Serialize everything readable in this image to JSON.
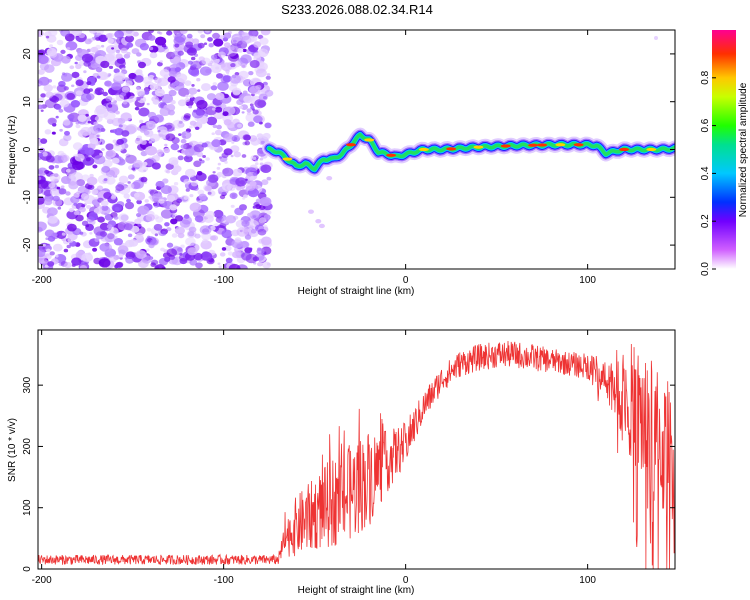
{
  "figure": {
    "title": "S233.2026.088.02.34.R14"
  },
  "chart_data": [
    {
      "type": "heatmap",
      "name": "spectrogram",
      "xlabel": "Height of straight line (km)",
      "ylabel": "Frequency (Hz)",
      "xlim": [
        -202,
        148
      ],
      "ylim": [
        -25,
        25
      ],
      "xticks": [
        -200,
        -100,
        0,
        100
      ],
      "yticks": [
        -20,
        -10,
        0,
        10,
        20
      ],
      "noise_region_x": [
        -202,
        -75
      ],
      "signal_track": {
        "x": [
          -75,
          -70,
          -65,
          -60,
          -55,
          -50,
          -45,
          -40,
          -35,
          -30,
          -25,
          -20,
          -15,
          -10,
          -5,
          0,
          10,
          20,
          40,
          60,
          80,
          100,
          105,
          110,
          120,
          140,
          148
        ],
        "freq": [
          0,
          -0.5,
          -2,
          -3.5,
          -3,
          -4,
          -2,
          -2,
          -1,
          1,
          3,
          2,
          -0.5,
          -1,
          -1.5,
          -1,
          0,
          0,
          0.5,
          0.8,
          1,
          1,
          0.8,
          -0.8,
          0,
          0,
          0.2
        ]
      },
      "colorbar": {
        "label": "Normalized spectral amplitude",
        "range": [
          0,
          1
        ],
        "ticks": [
          0.0,
          0.2,
          0.4,
          0.6,
          0.8
        ]
      }
    },
    {
      "type": "line",
      "name": "snr",
      "xlabel": "Height of straight line (km)",
      "ylabel": "SNR (10 * v/v)",
      "xlim": [
        -202,
        148
      ],
      "ylim": [
        0,
        390
      ],
      "xticks": [
        -200,
        -100,
        0,
        100
      ],
      "yticks": [
        0,
        100,
        200,
        300
      ],
      "color": "#ee3333",
      "series": [
        {
          "name": "SNR",
          "x": [
            -202,
            -150,
            -100,
            -70,
            -66,
            -60,
            -50,
            -40,
            -30,
            -20,
            -10,
            0,
            10,
            20,
            30,
            40,
            50,
            60,
            70,
            80,
            90,
            100,
            110,
            115,
            120,
            125,
            130,
            135,
            140,
            148
          ],
          "mean": [
            15,
            15,
            15,
            15,
            50,
            70,
            90,
            110,
            125,
            150,
            175,
            205,
            265,
            310,
            335,
            345,
            350,
            350,
            345,
            340,
            335,
            330,
            315,
            300,
            290,
            270,
            245,
            225,
            200,
            190
          ],
          "spread": [
            8,
            8,
            8,
            8,
            30,
            50,
            60,
            75,
            80,
            80,
            50,
            35,
            25,
            22,
            22,
            22,
            22,
            22,
            22,
            20,
            20,
            22,
            30,
            55,
            80,
            100,
            120,
            120,
            120,
            110
          ]
        }
      ]
    }
  ]
}
